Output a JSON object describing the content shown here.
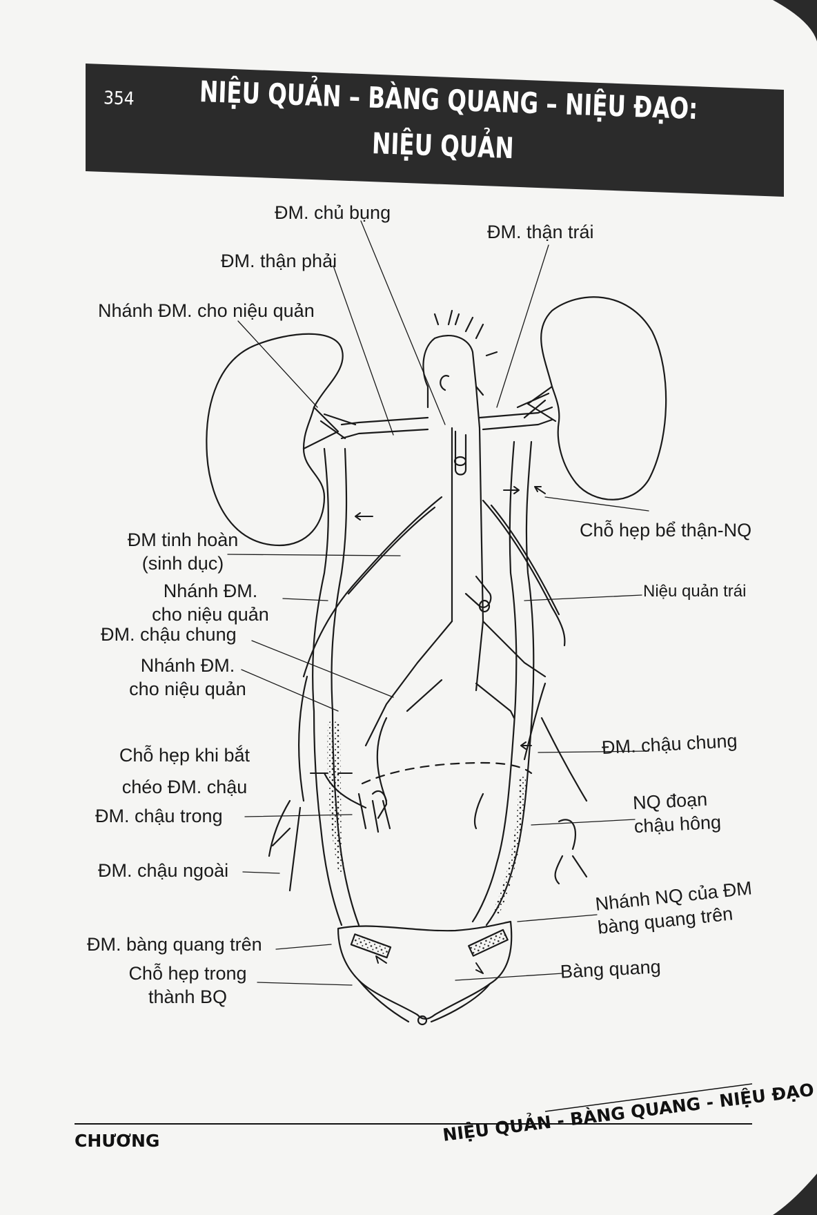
{
  "header": {
    "page_number": "354",
    "title_line1": "NIỆU QUẢN – BÀNG QUANG – NIỆU ĐẠO:",
    "title_line2": "NIỆU QUẢN"
  },
  "labels": {
    "dm_chu_bung": "ĐM. chủ bụng",
    "dm_than_trai": "ĐM. thận trái",
    "dm_than_phai": "ĐM. thận phải",
    "nhanh_dm_nieu_quan_top": "Nhánh ĐM. cho niệu quản",
    "cho_hep_be_than": "Chỗ hẹp bể thận-NQ",
    "dm_tinh_hoan_1": "ĐM tinh hoàn",
    "dm_tinh_hoan_2": "(sinh dục)",
    "nhanh_dm_2_1": "Nhánh ĐM.",
    "nhanh_dm_2_2": "cho niệu quản",
    "nieu_quan_trai": "Niệu quản trái",
    "dm_chau_chung_left": "ĐM. chậu chung",
    "nhanh_dm_3_1": "Nhánh ĐM.",
    "nhanh_dm_3_2": "cho niệu quản",
    "cho_hep_bat_cheo_1": "Chỗ hẹp khi bắt",
    "cho_hep_bat_cheo_2": "chéo ĐM. chậu",
    "dm_chau_chung_right": "ĐM. chậu chung",
    "dm_chau_trong": "ĐM. chậu trong",
    "nq_doan_1": "NQ đoạn",
    "nq_doan_2": "chậu hông",
    "dm_chau_ngoai": "ĐM. chậu ngoài",
    "nhanh_nq_dm_1": "Nhánh NQ của ĐM",
    "nhanh_nq_dm_2": "bàng quang trên",
    "dm_bang_quang_tren": "ĐM. bàng quang trên",
    "cho_hep_thanh_1": "Chỗ hẹp trong",
    "cho_hep_thanh_2": "thành BQ",
    "bang_quang": "Bàng quang"
  },
  "footer": {
    "left": "CHƯƠNG",
    "right": "NIỆU QUẢN - BÀNG QUANG - NIỆU ĐẠO"
  },
  "colors": {
    "banner": "#2b2b2b",
    "paper": "#f4f4f2",
    "ink": "#1a1a1a"
  }
}
